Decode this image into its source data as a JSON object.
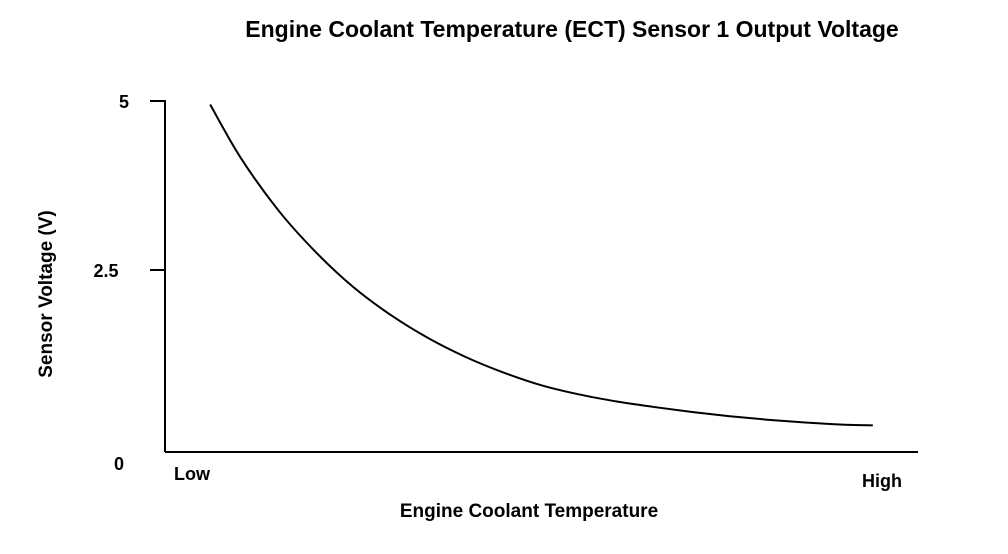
{
  "chart_data": {
    "type": "line",
    "title": "Engine Coolant Temperature (ECT) Sensor 1 Output Voltage",
    "xlabel": "Engine Coolant Temperature",
    "ylabel": "Sensor Voltage (V)",
    "x_ticks": [
      "Low",
      "High"
    ],
    "y_ticks": [
      "5",
      "2.5",
      "0"
    ],
    "ylim": [
      0,
      5
    ],
    "xlim": [
      "Low",
      "High"
    ],
    "grid": false,
    "series": [
      {
        "x": [
          0.06,
          0.1,
          0.15,
          0.2,
          0.25,
          0.3,
          0.35,
          0.4,
          0.45,
          0.5,
          0.55,
          0.6,
          0.65,
          0.7,
          0.75,
          0.8,
          0.85,
          0.9,
          0.94
        ],
        "values": [
          4.95,
          4.2,
          3.45,
          2.85,
          2.35,
          1.95,
          1.62,
          1.35,
          1.13,
          0.95,
          0.82,
          0.72,
          0.64,
          0.57,
          0.51,
          0.46,
          0.42,
          0.39,
          0.38
        ]
      }
    ],
    "colors": {
      "line": "#000000",
      "axis": "#000000",
      "background": "#ffffff"
    }
  }
}
